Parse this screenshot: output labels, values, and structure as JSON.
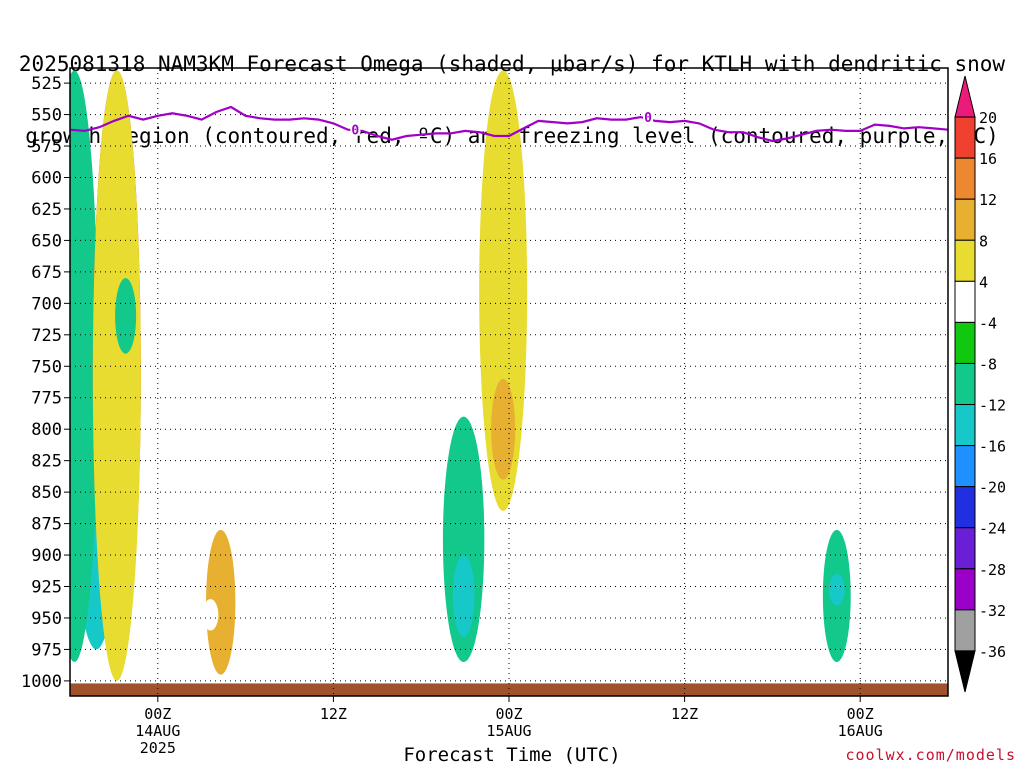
{
  "header": {
    "title_line1": "2025081318 NAM3KM Forecast Omega (shaded, μbar/s) for KTLH with dendritic snow",
    "title_line2": "growth region (contoured, red, ºC) and freezing level (contoured, purple, ºC)"
  },
  "footer": {
    "credit": "coolwx.com/models"
  },
  "chart_data": {
    "type": "heatmap",
    "title": "2025081318 NAM3KM Forecast Omega (shaded, μbar/s) for KTLH with dendritic snow growth region (contoured, red, ºC) and freezing level (contoured, purple, ºC)",
    "xlabel": "Forecast Time (UTC)",
    "ylabel": "",
    "x_range_hours_from_init": [
      0,
      60
    ],
    "x_ticks": [
      {
        "hour": 6,
        "label": "00Z",
        "sub": "14AUG",
        "sub2": "2025"
      },
      {
        "hour": 18,
        "label": "12Z",
        "sub": "",
        "sub2": ""
      },
      {
        "hour": 30,
        "label": "00Z",
        "sub": "15AUG",
        "sub2": ""
      },
      {
        "hour": 42,
        "label": "12Z",
        "sub": "",
        "sub2": ""
      },
      {
        "hour": 54,
        "label": "00Z",
        "sub": "16AUG",
        "sub2": ""
      }
    ],
    "y_ticks_hpa": [
      525,
      550,
      575,
      600,
      625,
      650,
      675,
      700,
      725,
      750,
      775,
      800,
      825,
      850,
      875,
      900,
      925,
      950,
      975,
      1000
    ],
    "y_range_hpa": [
      513,
      1012
    ],
    "colorbar": {
      "unit": "μbar/s",
      "bounds": [
        -36,
        -32,
        -28,
        -24,
        -20,
        -16,
        -12,
        -8,
        -4,
        4,
        8,
        12,
        16,
        20
      ],
      "colors": [
        "#000000",
        "#a0a0a0",
        "#9a00c8",
        "#6a1fd6",
        "#2030e0",
        "#1e90ff",
        "#16c8c8",
        "#12c88a",
        "#10c810",
        "#ffffff",
        "#e8dc30",
        "#e8b030",
        "#ec8830",
        "#f04030",
        "#ec1a78"
      ],
      "labels": [
        "20",
        "16",
        "12",
        "8",
        "4",
        "-4",
        "-8",
        "-12",
        "-16",
        "-20",
        "-24",
        "-28",
        "-32",
        "-36"
      ]
    },
    "freezing_level": {
      "label": "0",
      "color": "#a000c8",
      "points_hour_hpa": [
        [
          0,
          562
        ],
        [
          1,
          563
        ],
        [
          2,
          560
        ],
        [
          3,
          555
        ],
        [
          4,
          551
        ],
        [
          5,
          554
        ],
        [
          6,
          551
        ],
        [
          7,
          549
        ],
        [
          8,
          551
        ],
        [
          9,
          554
        ],
        [
          10,
          548
        ],
        [
          11,
          544
        ],
        [
          12,
          551
        ],
        [
          13,
          553
        ],
        [
          14,
          554
        ],
        [
          15,
          554
        ],
        [
          16,
          553
        ],
        [
          17,
          554
        ],
        [
          18,
          557
        ],
        [
          19,
          562
        ],
        [
          20,
          563
        ],
        [
          21,
          567
        ],
        [
          22,
          570
        ],
        [
          23,
          567
        ],
        [
          24,
          566
        ],
        [
          25,
          565
        ],
        [
          26,
          565
        ],
        [
          27,
          563
        ],
        [
          28,
          564
        ],
        [
          29,
          567
        ],
        [
          30,
          567
        ],
        [
          31,
          561
        ],
        [
          32,
          555
        ],
        [
          33,
          556
        ],
        [
          34,
          557
        ],
        [
          35,
          556
        ],
        [
          36,
          553
        ],
        [
          37,
          554
        ],
        [
          38,
          554
        ],
        [
          39,
          552
        ],
        [
          40,
          555
        ],
        [
          41,
          556
        ],
        [
          42,
          555
        ],
        [
          43,
          557
        ],
        [
          44,
          562
        ],
        [
          45,
          564
        ],
        [
          46,
          564
        ],
        [
          47,
          568
        ],
        [
          48,
          571
        ],
        [
          49,
          569
        ],
        [
          50,
          566
        ],
        [
          51,
          563
        ],
        [
          52,
          562
        ],
        [
          53,
          563
        ],
        [
          54,
          563
        ],
        [
          55,
          558
        ],
        [
          56,
          559
        ],
        [
          57,
          561
        ],
        [
          58,
          560
        ],
        [
          59,
          561
        ],
        [
          60,
          562
        ]
      ]
    },
    "omega_blobs": [
      {
        "hour": 2.1,
        "hpa_top": 725,
        "hpa_bot": 910,
        "value": -36
      },
      {
        "hour": 1.9,
        "hpa_top": 700,
        "hpa_bot": 940,
        "value": -28
      },
      {
        "hour": 1.8,
        "hpa_top": 675,
        "hpa_bot": 975,
        "value": -12
      },
      {
        "hour": 0.3,
        "hpa_top": 515,
        "hpa_bot": 985,
        "value": -8
      },
      {
        "hour": 3.2,
        "hpa_top": 515,
        "hpa_bot": 995,
        "value": 20
      },
      {
        "hour": 3.2,
        "hpa_top": 515,
        "hpa_bot": 1000,
        "value": 8
      },
      {
        "hour": 3.8,
        "hpa_top": 680,
        "hpa_bot": 740,
        "value": -8
      },
      {
        "hour": 10.3,
        "hpa_top": 880,
        "hpa_bot": 995,
        "value": 12
      },
      {
        "hour": 18.9,
        "hpa_top": 850,
        "hpa_bot": 980,
        "value": 4
      },
      {
        "hour": 9.6,
        "hpa_top": 935,
        "hpa_bot": 960,
        "value": 4
      },
      {
        "hour": 26.9,
        "hpa_top": 790,
        "hpa_bot": 985,
        "value": -8
      },
      {
        "hour": 26.9,
        "hpa_top": 900,
        "hpa_bot": 965,
        "value": -12
      },
      {
        "hour": 29.6,
        "hpa_top": 515,
        "hpa_bot": 865,
        "value": 8
      },
      {
        "hour": 29.6,
        "hpa_top": 760,
        "hpa_bot": 840,
        "value": 12
      },
      {
        "hour": 52.4,
        "hpa_top": 880,
        "hpa_bot": 985,
        "value": -8
      },
      {
        "hour": 52.4,
        "hpa_top": 915,
        "hpa_bot": 940,
        "value": -12
      },
      {
        "hour": 53.4,
        "hpa_top": 775,
        "hpa_bot": 830,
        "value": 4
      },
      {
        "hour": 60,
        "hpa_top": 905,
        "hpa_bot": 935,
        "value": 4
      }
    ]
  }
}
